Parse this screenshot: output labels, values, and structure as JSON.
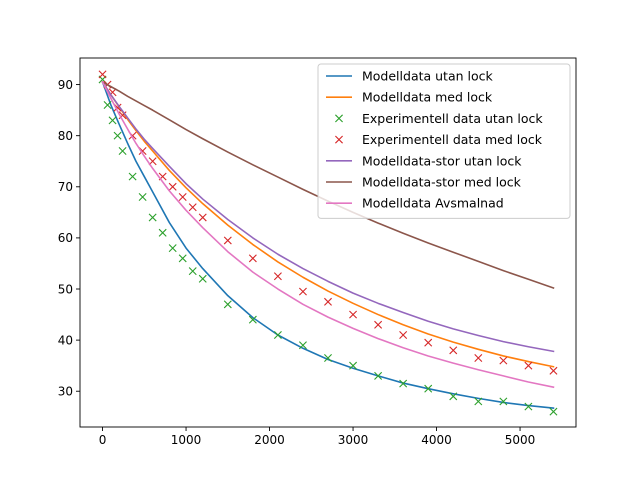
{
  "chart_data": {
    "type": "line",
    "title": "",
    "xlabel": "",
    "ylabel": "",
    "xlim": [
      -270,
      5670
    ],
    "ylim": [
      23.0,
      95.2
    ],
    "xticks": [
      0,
      1000,
      2000,
      3000,
      4000,
      5000
    ],
    "yticks": [
      30,
      40,
      50,
      60,
      70,
      80,
      90
    ],
    "legend_position": "top-right",
    "grid": false,
    "series": [
      {
        "name": "Modelldata utan lock",
        "kind": "line",
        "color": "#1f77b4",
        "x": [
          0,
          100,
          200,
          300,
          400,
          500,
          600,
          800,
          1000,
          1200,
          1500,
          1800,
          2100,
          2400,
          2700,
          3000,
          3300,
          3600,
          3900,
          4200,
          4500,
          4800,
          5100,
          5400
        ],
        "y": [
          90.5,
          86.0,
          82.2,
          78.5,
          75.0,
          72.0,
          69.0,
          63.0,
          58.0,
          54.0,
          48.7,
          44.4,
          41.0,
          38.4,
          36.2,
          34.5,
          33.0,
          31.6,
          30.5,
          29.5,
          28.6,
          27.8,
          27.2,
          26.7
        ]
      },
      {
        "name": "Modelldata med lock",
        "kind": "line",
        "color": "#ff7f0e",
        "x": [
          0,
          100,
          200,
          300,
          400,
          500,
          600,
          800,
          1000,
          1200,
          1500,
          1800,
          2100,
          2400,
          2700,
          3000,
          3300,
          3600,
          3900,
          4200,
          4500,
          4800,
          5100,
          5400
        ],
        "y": [
          90.5,
          88.0,
          85.6,
          83.2,
          81.0,
          78.9,
          77.0,
          73.2,
          69.8,
          66.7,
          62.5,
          58.7,
          55.3,
          52.3,
          49.6,
          47.2,
          45.0,
          43.0,
          41.2,
          39.6,
          38.2,
          36.9,
          35.8,
          34.8
        ]
      },
      {
        "name": "Experimentell data utan lock",
        "kind": "scatter",
        "marker": "x",
        "color": "#2ca02c",
        "x": [
          0,
          60,
          120,
          180,
          240,
          360,
          480,
          600,
          720,
          840,
          960,
          1080,
          1200,
          1500,
          1800,
          2100,
          2400,
          2700,
          3000,
          3300,
          3600,
          3900,
          4200,
          4500,
          4800,
          5100,
          5400
        ],
        "y": [
          91.0,
          86.0,
          83.0,
          80.0,
          77.0,
          72.0,
          68.0,
          64.0,
          61.0,
          58.0,
          56.0,
          53.5,
          52.0,
          47.0,
          44.0,
          41.0,
          39.0,
          36.5,
          35.0,
          33.0,
          31.5,
          30.5,
          29.0,
          28.0,
          28.0,
          27.0,
          26.0
        ]
      },
      {
        "name": "Experimentell data med lock",
        "kind": "scatter",
        "marker": "x",
        "color": "#d62728",
        "x": [
          0,
          60,
          120,
          180,
          240,
          360,
          480,
          600,
          720,
          840,
          960,
          1080,
          1200,
          1500,
          1800,
          2100,
          2400,
          2700,
          3000,
          3300,
          3600,
          3900,
          4200,
          4500,
          4800,
          5100,
          5400
        ],
        "y": [
          92.0,
          90.0,
          88.5,
          85.5,
          84.0,
          80.0,
          77.0,
          75.0,
          72.0,
          70.0,
          68.0,
          66.0,
          64.0,
          59.5,
          56.0,
          52.5,
          49.5,
          47.5,
          45.0,
          43.0,
          41.0,
          39.5,
          38.0,
          36.5,
          36.0,
          35.0,
          34.0
        ]
      },
      {
        "name": "Modelldata-stor utan lock",
        "kind": "line",
        "color": "#9467bd",
        "x": [
          0,
          100,
          200,
          300,
          400,
          500,
          600,
          800,
          1000,
          1200,
          1500,
          1800,
          2100,
          2400,
          2700,
          3000,
          3300,
          3600,
          3900,
          4200,
          4500,
          4800,
          5100,
          5400
        ],
        "y": [
          90.5,
          88.0,
          85.7,
          83.5,
          81.3,
          79.3,
          77.5,
          74.0,
          70.6,
          67.6,
          63.6,
          60.0,
          56.8,
          54.0,
          51.5,
          49.2,
          47.2,
          45.4,
          43.7,
          42.2,
          40.9,
          39.7,
          38.7,
          37.8
        ]
      },
      {
        "name": "Modelldata-stor med lock",
        "kind": "line",
        "color": "#8c564b",
        "x": [
          0,
          100,
          200,
          300,
          400,
          500,
          600,
          800,
          1000,
          1200,
          1500,
          1800,
          2100,
          2400,
          2700,
          3000,
          3300,
          3600,
          3900,
          4200,
          4500,
          4800,
          5100,
          5400
        ],
        "y": [
          90.5,
          89.6,
          88.7,
          87.7,
          86.8,
          85.9,
          85.0,
          83.1,
          81.2,
          79.4,
          76.8,
          74.3,
          71.9,
          69.5,
          67.2,
          65.0,
          62.9,
          60.9,
          59.0,
          57.2,
          55.4,
          53.6,
          51.9,
          50.2
        ]
      },
      {
        "name": "Modelldata Avsmalnad",
        "kind": "line",
        "color": "#e377c2",
        "x": [
          0,
          100,
          200,
          300,
          400,
          500,
          600,
          800,
          1000,
          1200,
          1500,
          1800,
          2100,
          2400,
          2700,
          3000,
          3300,
          3600,
          3900,
          4200,
          4500,
          4800,
          5100,
          5400
        ],
        "y": [
          90.5,
          87.3,
          84.2,
          81.3,
          78.5,
          76.0,
          73.6,
          69.2,
          65.4,
          62.0,
          57.3,
          53.3,
          50.0,
          47.0,
          44.5,
          42.3,
          40.3,
          38.5,
          36.9,
          35.5,
          34.2,
          33.0,
          31.8,
          30.8
        ]
      }
    ]
  }
}
